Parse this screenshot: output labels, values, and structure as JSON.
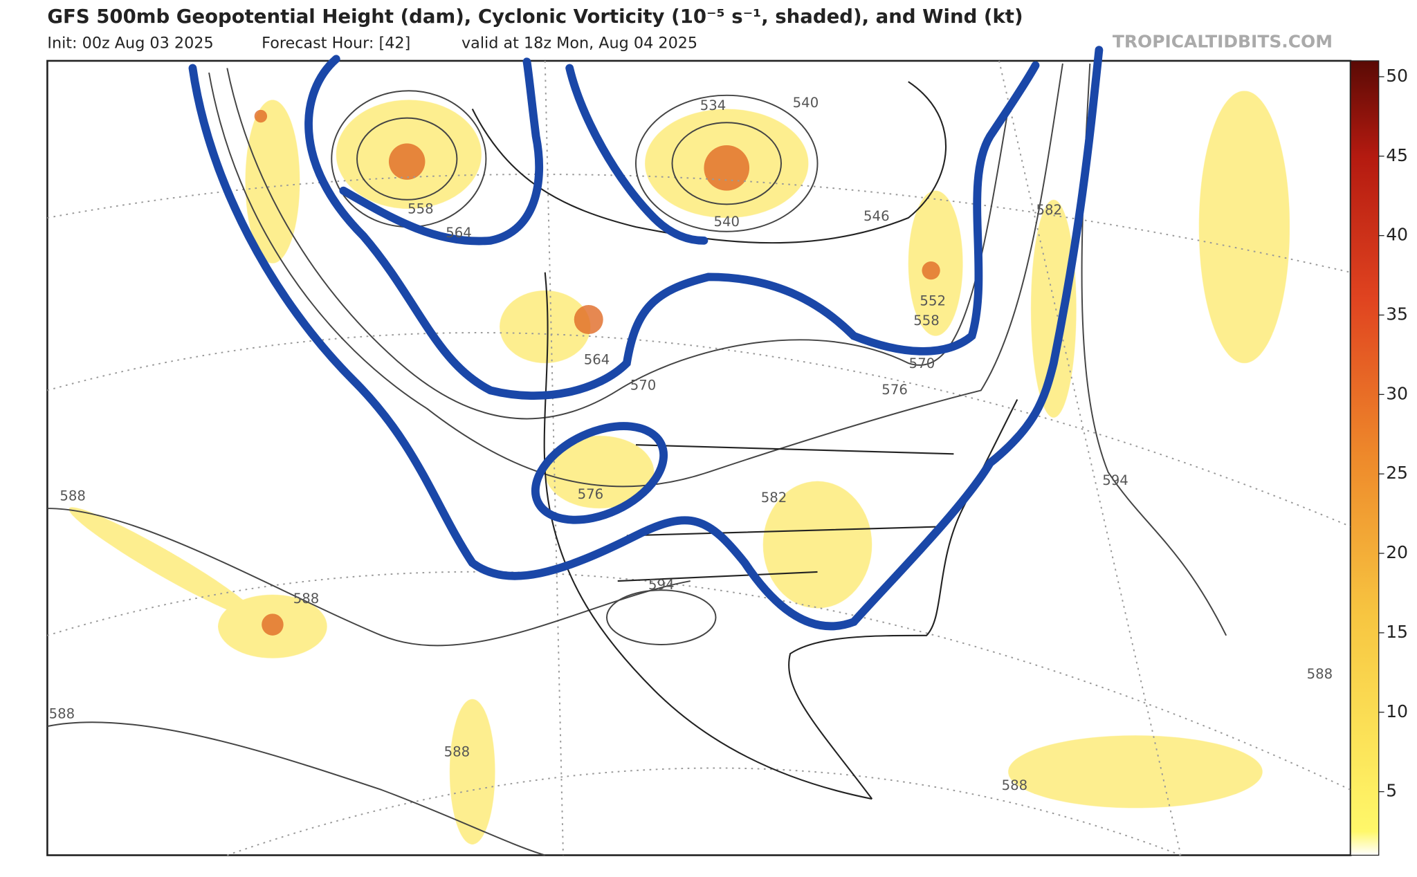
{
  "header": {
    "title": "GFS 500mb Geopotential Height (dam), Cyclonic Vorticity (10⁻⁵ s⁻¹, shaded), and Wind (kt)",
    "init": "Init: 00z Aug 03 2025",
    "forecast_hour": "Forecast Hour: [42]",
    "valid": "valid at 18z Mon, Aug 04 2025",
    "watermark": "TROPICALTIDBITS.COM"
  },
  "colorbar": {
    "range": [
      1,
      51
    ],
    "ticks": [
      5,
      10,
      15,
      20,
      25,
      30,
      35,
      40,
      45,
      50
    ]
  },
  "contours": [
    "534",
    "540",
    "558",
    "564",
    "540",
    "546",
    "582",
    "552",
    "558",
    "564",
    "570",
    "570",
    "576",
    "576",
    "582",
    "594",
    "594",
    "588",
    "588",
    "588",
    "588",
    "588",
    "588"
  ]
}
